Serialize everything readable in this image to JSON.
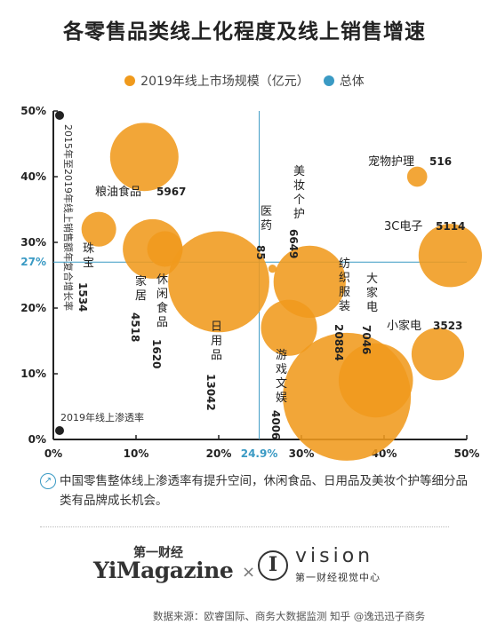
{
  "title": "各零售品类线上化程度及线上销售增速",
  "legend": {
    "size_label": "2019年线上市场规模（亿元）",
    "overall_label": "总体",
    "size_color": "#f09a1c",
    "overall_color": "#3a9ac4"
  },
  "chart_data": {
    "type": "scatter",
    "xlabel": "2019年线上渗透率",
    "ylabel": "2015年至2019年线上销售额年复合增长率",
    "xlim": [
      0,
      50
    ],
    "ylim": [
      0,
      50
    ],
    "x_ticks": [
      "0%",
      "10%",
      "20%",
      "30%",
      "40%",
      "50%"
    ],
    "y_ticks": [
      "0%",
      "10%",
      "20%",
      "30%",
      "40%",
      "50%"
    ],
    "reference": {
      "x": 24.9,
      "y": 27,
      "x_label": "24.9%",
      "y_label": "27%"
    },
    "points": [
      {
        "name": "粮油食品",
        "value": "5967",
        "x": 11,
        "y": 43,
        "size": 5967
      },
      {
        "name": "珠宝",
        "value": "1534",
        "x": 5.5,
        "y": 32,
        "size": 1534
      },
      {
        "name": "家居",
        "value": "4518",
        "x": 12,
        "y": 29,
        "size": 4518
      },
      {
        "name": "休闲食品",
        "value": "1620",
        "x": 13.5,
        "y": 29,
        "size": 1620
      },
      {
        "name": "日用品",
        "value": "13042",
        "x": 20,
        "y": 24,
        "size": 13042
      },
      {
        "name": "医药",
        "value": "85",
        "x": 26.5,
        "y": 26,
        "size": 85
      },
      {
        "name": "美妆个护",
        "value": "6649",
        "x": 31,
        "y": 24,
        "size": 6649
      },
      {
        "name": "游戏文娱",
        "value": "4006",
        "x": 28.5,
        "y": 17,
        "size": 4006
      },
      {
        "name": "纺织服装",
        "value": "20884",
        "x": 35.5,
        "y": 6.5,
        "size": 20884
      },
      {
        "name": "大家电",
        "value": "7046",
        "x": 39,
        "y": 9,
        "size": 7046
      },
      {
        "name": "宠物护理",
        "value": "516",
        "x": 44,
        "y": 40,
        "size": 516
      },
      {
        "name": "3C电子",
        "value": "5114",
        "x": 48,
        "y": 28,
        "size": 5114
      },
      {
        "name": "小家电",
        "value": "3523",
        "x": 46.5,
        "y": 13,
        "size": 3523
      }
    ],
    "grid": false,
    "legend_position": "top"
  },
  "note": "中国零售整体线上渗透率有提升空间，休闲食品、日用品及美妆个护等细分品类有品牌成长机会。",
  "brand": {
    "cn_small": "第一财经",
    "name": "YiMagazine",
    "times": "×",
    "logo_letter": "I",
    "vision": "vision",
    "vision_cn": "第一财经视觉中心"
  },
  "source": "数据来源：欧睿国际、商务大数据监测  知乎 @逸迅迅子商务"
}
